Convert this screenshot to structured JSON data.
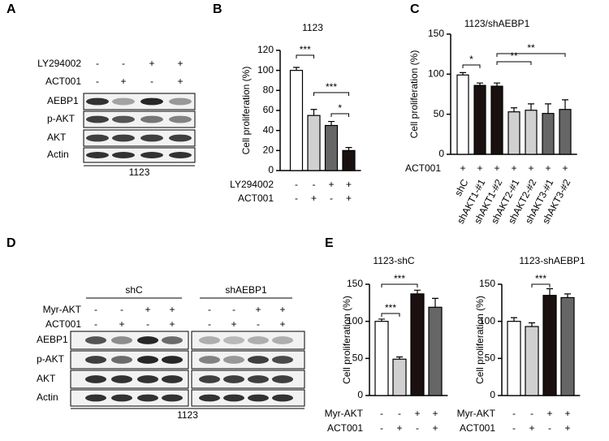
{
  "panels": [
    "A",
    "B",
    "C",
    "D",
    "E"
  ],
  "blot_a": {
    "treatments": [
      {
        "name": "LY294002",
        "signs": [
          "-",
          "-",
          "+",
          "+"
        ]
      },
      {
        "name": "ACT001",
        "signs": [
          "-",
          "+",
          "-",
          "+"
        ]
      }
    ],
    "rows": [
      "AEBP1",
      "p-AKT",
      "AKT",
      "Actin"
    ],
    "caption": "1123"
  },
  "blot_d": {
    "groups": [
      "shC",
      "shAEBP1"
    ],
    "treatments": [
      {
        "name": "Myr-AKT",
        "signs": [
          "-",
          "-",
          "+",
          "+",
          "-",
          "-",
          "+",
          "+"
        ]
      },
      {
        "name": "ACT001",
        "signs": [
          "-",
          "+",
          "-",
          "+",
          "-",
          "+",
          "-",
          "+"
        ]
      }
    ],
    "rows": [
      "AEBP1",
      "p-AKT",
      "AKT",
      "Actin"
    ],
    "caption": "1123"
  },
  "chart_data": [
    {
      "type": "bar",
      "title": "1123",
      "ylabel": "Cell proliferation (%)",
      "values": [
        100,
        55,
        45,
        20
      ],
      "errors": [
        3,
        6,
        4,
        3
      ],
      "colors": [
        "#ffffff",
        "#d0d0d0",
        "#666666",
        "#1a1010"
      ],
      "ylim": [
        0,
        120
      ],
      "yticks": [
        0,
        20,
        40,
        60,
        80,
        100,
        120
      ],
      "annotations": [
        "***",
        "***",
        "*"
      ],
      "treatments": [
        {
          "name": "LY294002",
          "signs": [
            "-",
            "-",
            "+",
            "+"
          ]
        },
        {
          "name": "ACT001",
          "signs": [
            "-",
            "+",
            "-",
            "+"
          ]
        }
      ]
    },
    {
      "type": "bar",
      "title": "1123/shAEBP1",
      "ylabel": "Cell proliferation (%)",
      "categories": [
        "shC",
        "shAKT1-#1",
        "shAKT1-#2",
        "shAKT2-#1",
        "shAKT2-#2",
        "shAKT3-#1",
        "shAKT3-#2"
      ],
      "values": [
        99,
        86,
        85,
        53,
        55,
        51,
        56
      ],
      "errors": [
        3,
        3,
        4,
        5,
        8,
        12,
        12
      ],
      "colors": [
        "#ffffff",
        "#1a1010",
        "#1a1010",
        "#d0d0d0",
        "#d0d0d0",
        "#666666",
        "#666666"
      ],
      "ylim": [
        0,
        150
      ],
      "yticks": [
        0,
        50,
        100,
        150
      ],
      "annotations": [
        "*",
        "**",
        "**"
      ],
      "treatments": [
        {
          "name": "ACT001",
          "signs": [
            "+",
            "+",
            "+",
            "+",
            "+",
            "+",
            "+"
          ]
        }
      ]
    },
    {
      "type": "bar",
      "title": "1123-shC",
      "ylabel": "Cell proliferation (%)",
      "values": [
        100,
        49,
        137,
        119
      ],
      "errors": [
        3,
        3,
        5,
        12
      ],
      "colors": [
        "#ffffff",
        "#d0d0d0",
        "#1a1010",
        "#666666"
      ],
      "ylim": [
        0,
        150
      ],
      "yticks": [
        0,
        50,
        100,
        150
      ],
      "annotations": [
        "***",
        "***"
      ],
      "treatments": [
        {
          "name": "Myr-AKT",
          "signs": [
            "-",
            "-",
            "+",
            "+"
          ]
        },
        {
          "name": "ACT001",
          "signs": [
            "-",
            "+",
            "-",
            "+"
          ]
        }
      ]
    },
    {
      "type": "bar",
      "title": "1123-shAEBP1",
      "ylabel": "Cell proliferation (%)",
      "values": [
        100,
        93,
        135,
        132
      ],
      "errors": [
        5,
        5,
        9,
        5
      ],
      "colors": [
        "#ffffff",
        "#d0d0d0",
        "#1a1010",
        "#666666"
      ],
      "ylim": [
        0,
        150
      ],
      "yticks": [
        0,
        50,
        100,
        150
      ],
      "annotations": [
        "***"
      ],
      "treatments": [
        {
          "name": "Myr-AKT",
          "signs": [
            "-",
            "-",
            "+",
            "+"
          ]
        },
        {
          "name": "ACT001",
          "signs": [
            "-",
            "+",
            "-",
            "+"
          ]
        }
      ]
    }
  ]
}
